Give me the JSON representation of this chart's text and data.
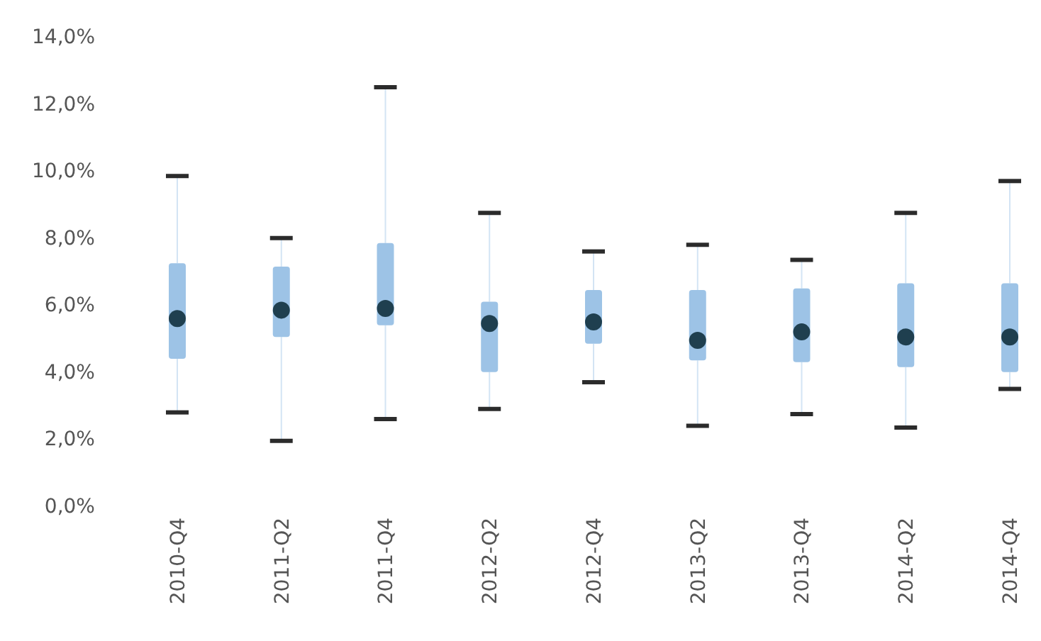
{
  "chart_data": {
    "type": "box",
    "categories": [
      "2010-Q4",
      "2011-Q2",
      "2011-Q4",
      "2012-Q2",
      "2012-Q4",
      "2013-Q2",
      "2013-Q4",
      "2014-Q2",
      "2014-Q4"
    ],
    "series": [
      {
        "color": "#9dc3e6",
        "boxes": [
          {
            "low": 2.8,
            "q1": 4.4,
            "median": 5.6,
            "q3": 7.25,
            "high": 9.85
          },
          {
            "low": 1.95,
            "q1": 5.05,
            "median": 5.85,
            "q3": 7.15,
            "high": 8.0
          },
          {
            "low": 2.6,
            "q1": 5.4,
            "median": 5.9,
            "q3": 7.85,
            "high": 12.5
          },
          {
            "low": 2.9,
            "q1": 4.0,
            "median": 5.45,
            "q3": 6.1,
            "high": 8.75
          },
          {
            "low": 3.7,
            "q1": 4.85,
            "median": 5.5,
            "q3": 6.45,
            "high": 7.6
          },
          {
            "low": 2.4,
            "q1": 4.35,
            "median": 4.95,
            "q3": 6.45,
            "high": 7.8
          },
          {
            "low": 2.75,
            "q1": 4.3,
            "median": 5.2,
            "q3": 6.5,
            "high": 7.35
          },
          {
            "low": 2.35,
            "q1": 4.15,
            "median": 5.05,
            "q3": 6.65,
            "high": 8.75
          },
          {
            "low": 3.5,
            "q1": 4.0,
            "median": 5.05,
            "q3": 6.65,
            "high": 9.7
          }
        ]
      }
    ],
    "ylim": [
      0,
      14
    ],
    "yticks": [
      {
        "value": 0,
        "label": "0,0%"
      },
      {
        "value": 2,
        "label": "2,0%"
      },
      {
        "value": 4,
        "label": "4,0%"
      },
      {
        "value": 6,
        "label": "6,0%"
      },
      {
        "value": 8,
        "label": "8,0%"
      },
      {
        "value": 10,
        "label": "10,0%"
      },
      {
        "value": 12,
        "label": "12,0%"
      },
      {
        "value": 14,
        "label": "14,0%"
      }
    ]
  }
}
